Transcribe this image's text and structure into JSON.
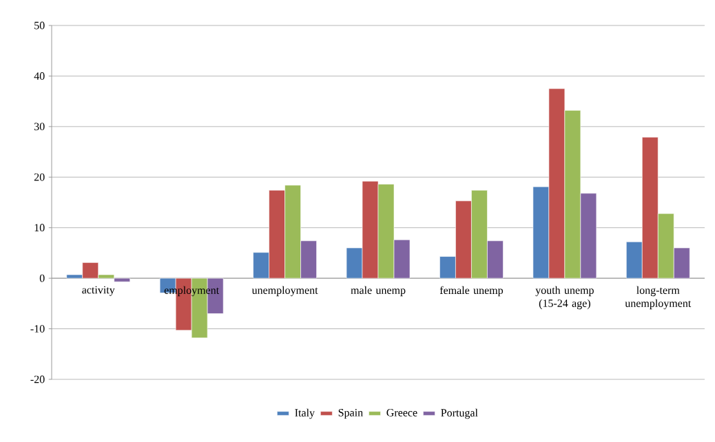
{
  "chart_data": {
    "type": "bar",
    "categories": [
      "activity",
      "employment",
      "unemployment",
      "male unemp",
      "female unemp",
      "youth unemp (15-24 age)",
      "long-term unemployment"
    ],
    "series": [
      {
        "name": "Italy",
        "color": "#4f81bd",
        "values": [
          0.7,
          -2.9,
          5.1,
          6.0,
          4.3,
          18.1,
          7.2
        ]
      },
      {
        "name": "Spain",
        "color": "#c0504d",
        "values": [
          3.1,
          -10.3,
          17.4,
          19.2,
          15.3,
          37.5,
          27.9
        ]
      },
      {
        "name": "Greece",
        "color": "#9bbb59",
        "values": [
          0.7,
          -11.8,
          18.4,
          18.6,
          17.4,
          33.2,
          12.8
        ]
      },
      {
        "name": "Portugal",
        "color": "#8064a2",
        "values": [
          -0.7,
          -7.0,
          7.4,
          7.6,
          7.4,
          16.8,
          6.0
        ]
      }
    ],
    "ylim": [
      -20,
      50
    ],
    "yticks": [
      -20,
      -10,
      0,
      10,
      20,
      30,
      40,
      50
    ],
    "grid": "y",
    "legend": "bottom"
  }
}
